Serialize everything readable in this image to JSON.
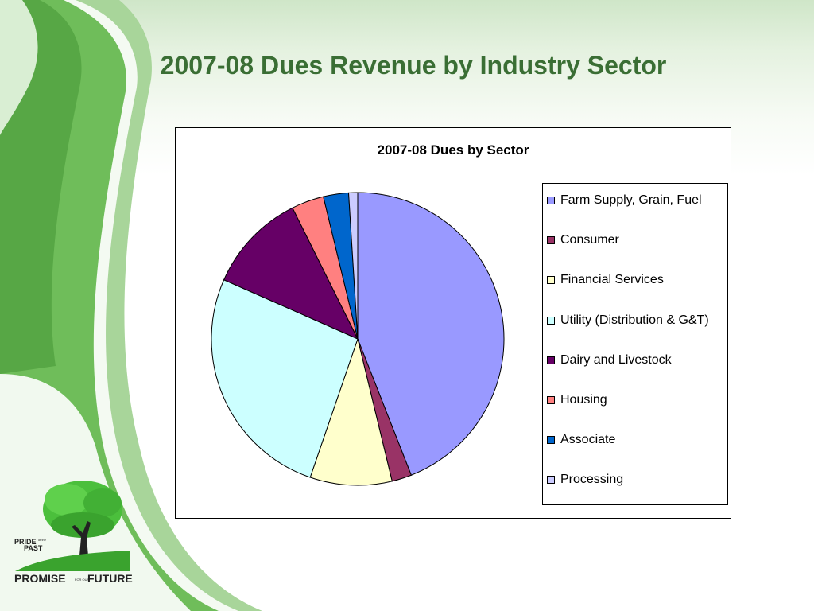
{
  "slide": {
    "title": "2007-08 Dues Revenue by Industry Sector"
  },
  "chart_data": {
    "type": "pie",
    "title": "2007-08 Dues by Sector",
    "categories": [
      "Farm Supply, Grain, Fuel",
      "Consumer",
      "Financial Services",
      "Utility (Distribution & G&T)",
      "Dairy and Livestock",
      "Housing",
      "Associate",
      "Processing"
    ],
    "values": [
      44.3,
      2.2,
      9.1,
      26.5,
      11.1,
      3.6,
      2.8,
      1.0
    ],
    "colors": [
      "#9999ff",
      "#993366",
      "#ffffcc",
      "#ccffff",
      "#660066",
      "#ff8080",
      "#0066cc",
      "#ccccff"
    ],
    "legend_position": "right",
    "start_angle": "top",
    "direction": "clockwise"
  },
  "logo": {
    "text_top": "PRIDE",
    "text_of": "of the",
    "text_past": "PAST",
    "text_promise": "PROMISE",
    "text_for": "FOR OUR",
    "text_future": "FUTURE"
  }
}
